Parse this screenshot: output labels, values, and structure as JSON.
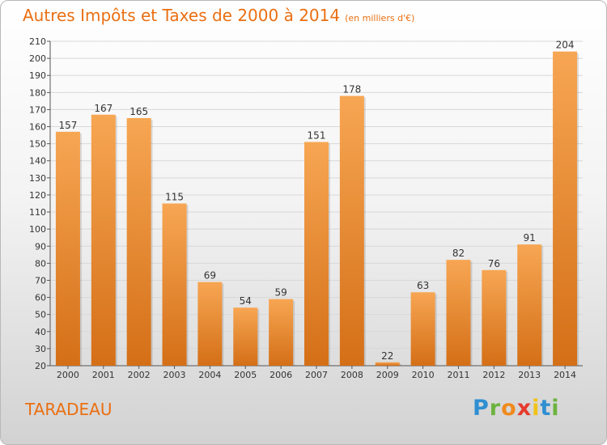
{
  "title": "Autres Impôts et Taxes de 2000 à 2014",
  "unit_note": "(en milliers d'€)",
  "commune": "TARADEAU",
  "logo_text": "Proxiti",
  "colors": {
    "title": "#ea6f12",
    "bar_light": "#f7a653",
    "bar_dark": "#d46f17",
    "grid": "#d8d8d8"
  },
  "chart_data": {
    "type": "bar",
    "categories": [
      "2000",
      "2001",
      "2002",
      "2003",
      "2004",
      "2005",
      "2006",
      "2007",
      "2008",
      "2009",
      "2010",
      "2011",
      "2012",
      "2013",
      "2014"
    ],
    "values": [
      157,
      167,
      165,
      115,
      69,
      54,
      59,
      151,
      178,
      22,
      63,
      82,
      76,
      91,
      204
    ],
    "ylim": [
      20,
      210
    ],
    "yticks": [
      20,
      30,
      40,
      50,
      60,
      70,
      80,
      90,
      100,
      110,
      120,
      130,
      140,
      150,
      160,
      170,
      180,
      190,
      200,
      210
    ],
    "grid": true,
    "xlabel": "",
    "ylabel": ""
  }
}
